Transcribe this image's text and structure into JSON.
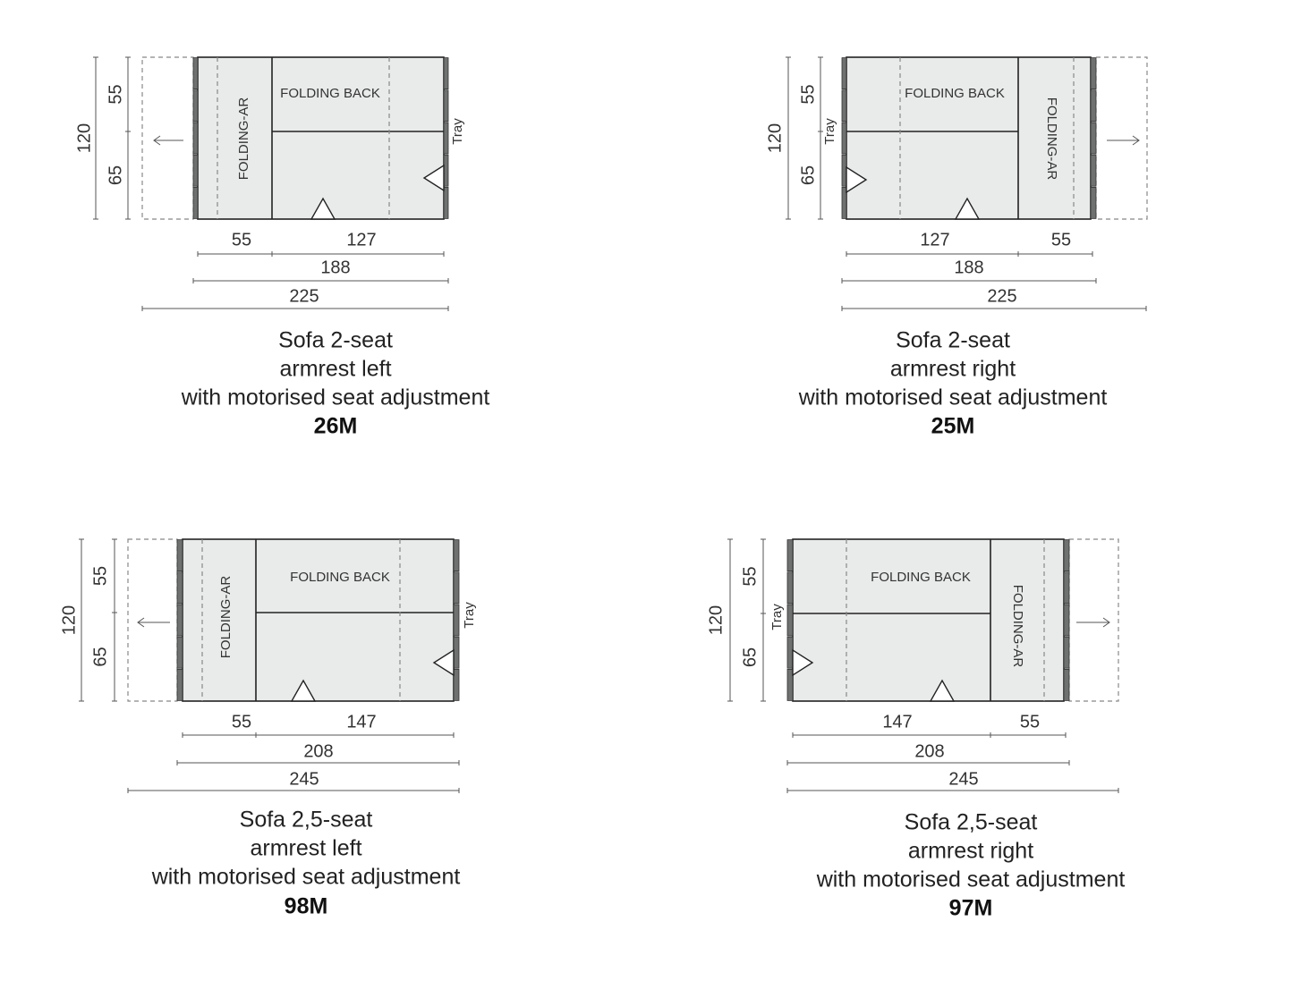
{
  "diagrams": [
    {
      "armrest_side": "left",
      "title_lines": [
        "Sofa 2-seat",
        "armrest left",
        "with motorised seat adjustment"
      ],
      "model": "26M",
      "labels": {
        "folding_back": "FOLDING BACK",
        "folding_ar": "FOLDING-AR",
        "tray": "Tray"
      },
      "dims": {
        "height": "120",
        "back_depth": "55",
        "seat_depth": "65",
        "arm": "55",
        "seat": "127",
        "inner": "188",
        "total": "225"
      }
    },
    {
      "armrest_side": "right",
      "title_lines": [
        "Sofa 2-seat",
        "armrest right",
        "with motorised seat adjustment"
      ],
      "model": "25M",
      "labels": {
        "folding_back": "FOLDING BACK",
        "folding_ar": "FOLDING-AR",
        "tray": "Tray"
      },
      "dims": {
        "height": "120",
        "back_depth": "55",
        "seat_depth": "65",
        "arm": "55",
        "seat": "127",
        "inner": "188",
        "total": "225"
      }
    },
    {
      "armrest_side": "left",
      "title_lines": [
        "Sofa 2,5-seat",
        "armrest left",
        "with motorised seat adjustment"
      ],
      "model": "98M",
      "labels": {
        "folding_back": "FOLDING BACK",
        "folding_ar": "FOLDING-AR",
        "tray": "Tray"
      },
      "dims": {
        "height": "120",
        "back_depth": "55",
        "seat_depth": "65",
        "arm": "55",
        "seat": "147",
        "inner": "208",
        "total": "245"
      }
    },
    {
      "armrest_side": "right",
      "title_lines": [
        "Sofa 2,5-seat",
        "armrest right",
        "with motorised seat adjustment"
      ],
      "model": "97M",
      "labels": {
        "folding_back": "FOLDING BACK",
        "folding_ar": "FOLDING-AR",
        "tray": "Tray"
      },
      "dims": {
        "height": "120",
        "back_depth": "55",
        "seat_depth": "65",
        "arm": "55",
        "seat": "147",
        "inner": "208",
        "total": "245"
      }
    }
  ],
  "colors": {
    "cushion": "#e9eaea",
    "frame_strip": "#6f7070",
    "line": "#222222"
  }
}
